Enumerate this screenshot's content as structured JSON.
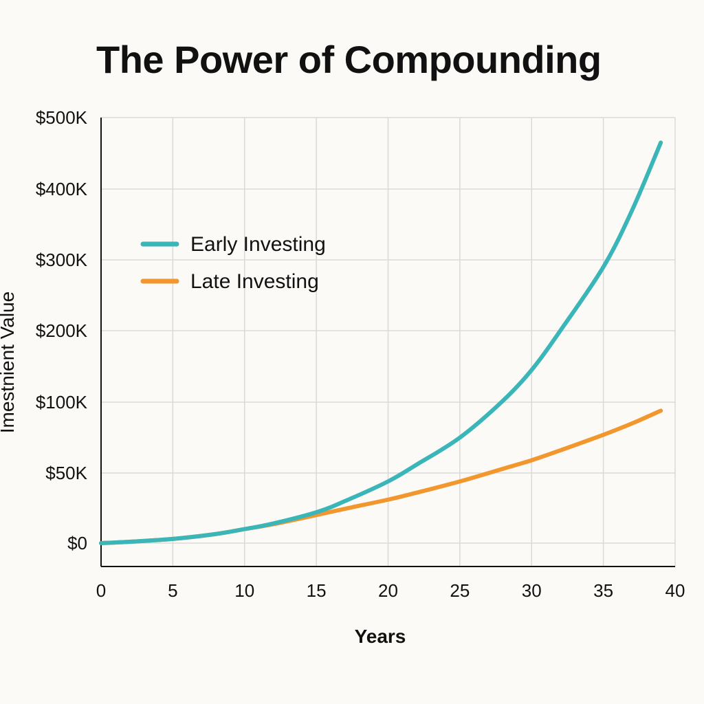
{
  "title": "The Power of Compounding",
  "colors": {
    "early": "#3ab5b8",
    "late": "#f2962e",
    "grid": "#d9d9d9",
    "axis": "#111111",
    "background": "#fbfaf6"
  },
  "chart_data": {
    "type": "line",
    "title": "The Power of Compounding",
    "xlabel": "Years",
    "ylabel": "Imestnient Value",
    "xlim": [
      0,
      40
    ],
    "x_ticks": [
      0,
      5,
      10,
      15,
      20,
      25,
      30,
      35,
      40
    ],
    "y_ticks": [
      {
        "label": "$0",
        "value": 0
      },
      {
        "label": "$50K",
        "value": 50000
      },
      {
        "label": "$100K",
        "value": 100000
      },
      {
        "label": "$200K",
        "value": 200000
      },
      {
        "label": "$300K",
        "value": 300000
      },
      {
        "label": "$400K",
        "value": 400000
      },
      {
        "label": "$500K",
        "value": 500000
      }
    ],
    "grid": true,
    "legend_position": "upper-left",
    "series": [
      {
        "name": "Early Investing",
        "color": "#3ab5b8",
        "x": [
          0,
          2,
          5,
          8,
          10,
          12,
          15,
          17,
          20,
          22,
          25,
          28,
          30,
          32,
          35,
          37,
          39
        ],
        "y": [
          0,
          1000,
          3000,
          6500,
          10000,
          14000,
          22000,
          30000,
          44000,
          56000,
          75000,
          102000,
          145000,
          200000,
          290000,
          370000,
          465000
        ]
      },
      {
        "name": "Late Investing",
        "color": "#f2962e",
        "x": [
          0,
          2,
          5,
          8,
          10,
          12,
          15,
          17,
          20,
          22,
          25,
          28,
          30,
          32,
          35,
          37,
          39
        ],
        "y": [
          0,
          1000,
          3000,
          6500,
          10000,
          13500,
          20000,
          24500,
          31000,
          36000,
          44000,
          53000,
          59000,
          66000,
          77000,
          85000,
          94000
        ]
      }
    ]
  }
}
